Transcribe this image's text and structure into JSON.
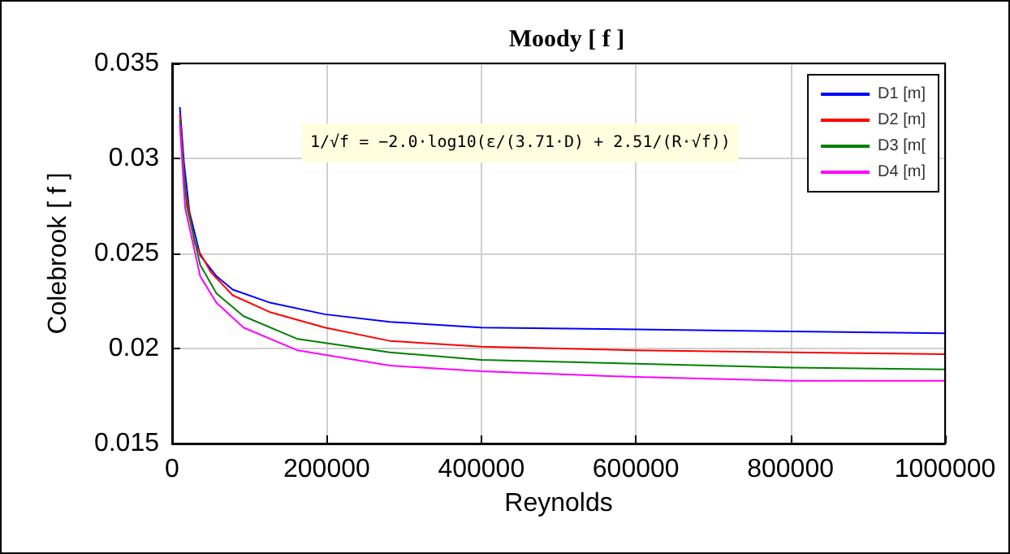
{
  "chart_data": {
    "type": "line",
    "title": "Moody [ f ]",
    "xlabel": "Reynolds",
    "ylabel": "Colebrook [ f ]",
    "annotations": [
      "1/√f = −2.0·log10(ε/(3.71·D) + 2.51/(R·√f))"
    ],
    "series": [
      {
        "name": "D1 [m]",
        "color": "#0000ff",
        "x": [
          10000,
          15300,
          22400,
          36300,
          57400,
          78400,
          127500,
          197500,
          281500,
          400000,
          600000,
          800000,
          1000000
        ],
        "values": [
          0.0327,
          0.0298,
          0.0272,
          0.0249,
          0.0238,
          0.0231,
          0.0224,
          0.0218,
          0.0214,
          0.0211,
          0.021,
          0.0209,
          0.0208
        ]
      },
      {
        "name": "D2 [m]",
        "color": "#ff0000",
        "x": [
          10000,
          16800,
          29400,
          50400,
          78400,
          127500,
          197500,
          281500,
          400000,
          600000,
          800000,
          1000000
        ],
        "values": [
          0.0323,
          0.0284,
          0.0255,
          0.024,
          0.0228,
          0.0219,
          0.0211,
          0.0204,
          0.0201,
          0.0199,
          0.0198,
          0.0197
        ]
      },
      {
        "name": "D3 [m[",
        "color": "#008000",
        "x": [
          10000,
          18900,
          36300,
          57400,
          92400,
          162400,
          281500,
          400000,
          600000,
          800000,
          1000000
        ],
        "values": [
          0.032,
          0.0275,
          0.0244,
          0.0229,
          0.0217,
          0.0205,
          0.0198,
          0.0194,
          0.0192,
          0.019,
          0.0189
        ]
      },
      {
        "name": "D4 [m]",
        "color": "#ff00ff",
        "x": [
          10000,
          16800,
          36300,
          57400,
          92400,
          162400,
          281500,
          400000,
          600000,
          800000,
          1000000
        ],
        "values": [
          0.0318,
          0.0274,
          0.0238,
          0.0224,
          0.0211,
          0.0199,
          0.0191,
          0.0188,
          0.0185,
          0.0183,
          0.0183
        ]
      }
    ],
    "xlim": [
      0,
      1000000
    ],
    "xticks": [
      0,
      200000,
      400000,
      600000,
      800000,
      1000000
    ],
    "ylim": [
      0.015,
      0.035
    ],
    "yticks": [
      0.015,
      0.02,
      0.025,
      0.03,
      0.035
    ],
    "grid": true,
    "legend": "top right",
    "marker": "none",
    "line_style": "solid"
  }
}
